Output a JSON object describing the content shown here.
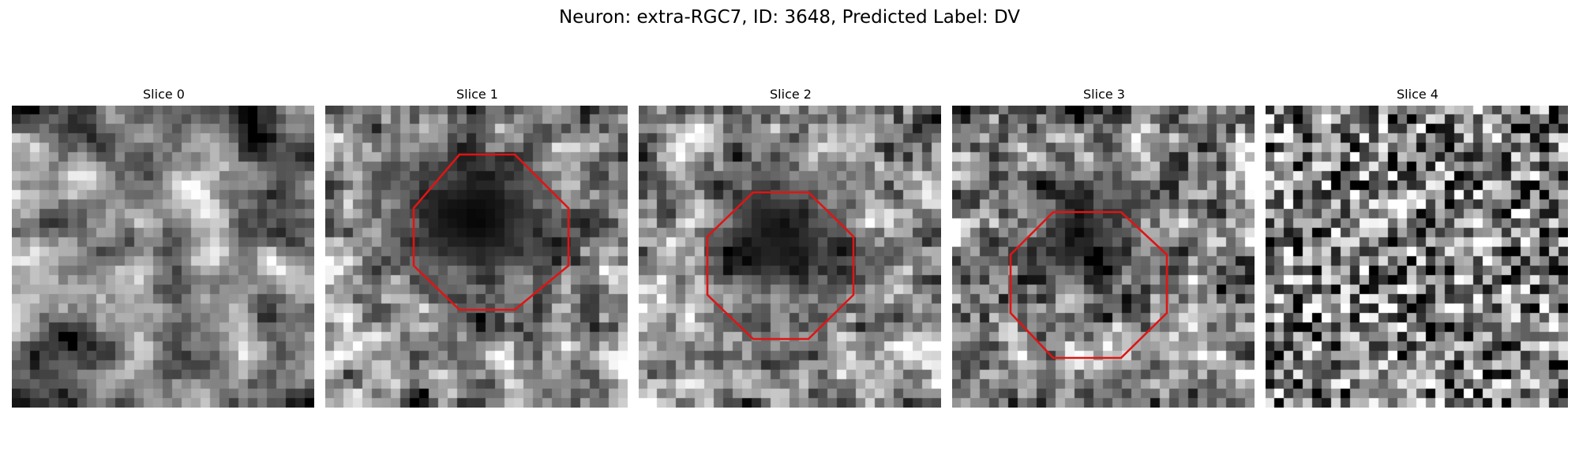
{
  "figure": {
    "title": "Neuron: extra-RGC7, ID: 3648, Predicted Label: DV"
  },
  "colors": {
    "roi_outline": "#e01414",
    "background": "#ffffff",
    "colormap": "grayscale"
  },
  "slices": [
    {
      "title": "Slice 0",
      "roi_visible": false
    },
    {
      "title": "Slice 1",
      "roi_visible": true
    },
    {
      "title": "Slice 2",
      "roi_visible": true
    },
    {
      "title": "Slice 3",
      "roi_visible": true
    },
    {
      "title": "Slice 4",
      "roi_visible": false
    }
  ]
}
